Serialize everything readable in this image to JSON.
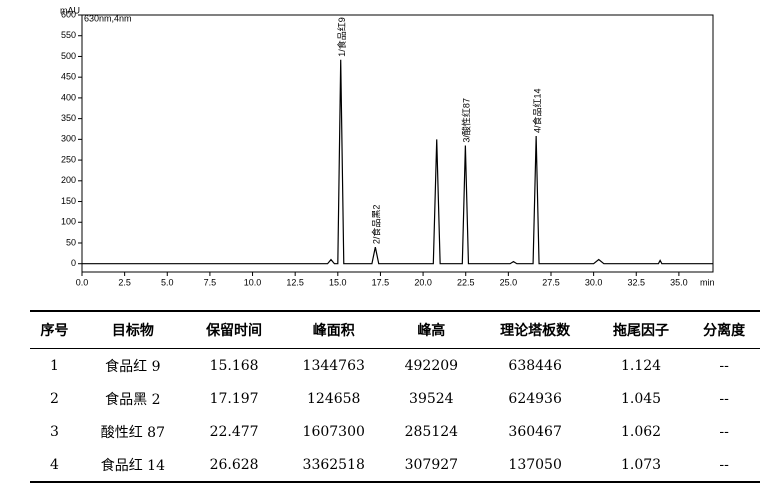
{
  "chart_data": {
    "type": "line",
    "y_label": "mAU",
    "x_label": "min",
    "annotation": "630nm,4nm",
    "xlim": [
      0,
      37
    ],
    "ylim": [
      -20,
      600
    ],
    "xticks": [
      {
        "value": 0,
        "label": "0.0"
      },
      2.5,
      {
        "value": 5,
        "label": "5.0"
      },
      7.5,
      {
        "value": 10,
        "label": "10.0"
      },
      12.5,
      {
        "value": 15,
        "label": "15.0"
      },
      17.5,
      {
        "value": 20,
        "label": "20.0"
      },
      22.5,
      {
        "value": 25,
        "label": "25.0"
      },
      27.5,
      {
        "value": 30,
        "label": "30.0"
      },
      32.5,
      {
        "value": 35,
        "label": "35.0"
      }
    ],
    "yticks": [
      0,
      50,
      100,
      150,
      200,
      250,
      300,
      350,
      400,
      450,
      500,
      550,
      600
    ],
    "series": [
      {
        "color": "#000000",
        "x": [
          0,
          14.4,
          14.6,
          14.8,
          15.0,
          15.17,
          15.35,
          17.0,
          17.2,
          17.4,
          20.6,
          20.8,
          21.0,
          22.3,
          22.48,
          22.66,
          25.1,
          25.3,
          25.5,
          26.45,
          26.63,
          26.8,
          30.0,
          30.3,
          30.6,
          33.8,
          33.9,
          34.0,
          37
        ],
        "values": [
          0,
          0,
          10,
          0,
          0,
          492,
          0,
          0,
          40,
          0,
          0,
          300,
          0,
          0,
          285,
          0,
          0,
          5,
          0,
          0,
          308,
          0,
          0,
          10,
          0,
          0,
          8,
          0,
          0
        ]
      }
    ],
    "peak_labels": [
      {
        "text": "1/食品红9",
        "x": 15.17,
        "y": 492
      },
      {
        "text": "2/食品黑2",
        "x": 17.2,
        "y": 40
      },
      {
        "text": "3/酸性红87",
        "x": 22.48,
        "y": 285
      },
      {
        "text": "4/食品红14",
        "x": 26.63,
        "y": 308
      }
    ]
  },
  "table": {
    "header": [
      "序号",
      "目标物",
      "保留时间",
      "峰面积",
      "峰高",
      "理论塔板数",
      "拖尾因子",
      "分离度"
    ],
    "rows": [
      [
        "1",
        "食品红 9",
        "15.168",
        "1344763",
        "492209",
        "638446",
        "1.124",
        "--"
      ],
      [
        "2",
        "食品黑 2",
        "17.197",
        "124658",
        "39524",
        "624936",
        "1.045",
        "--"
      ],
      [
        "3",
        "酸性红 87",
        "22.477",
        "1607300",
        "285124",
        "360467",
        "1.062",
        "--"
      ],
      [
        "4",
        "食品红 14",
        "26.628",
        "3362518",
        "307927",
        "137050",
        "1.073",
        "--"
      ]
    ]
  }
}
